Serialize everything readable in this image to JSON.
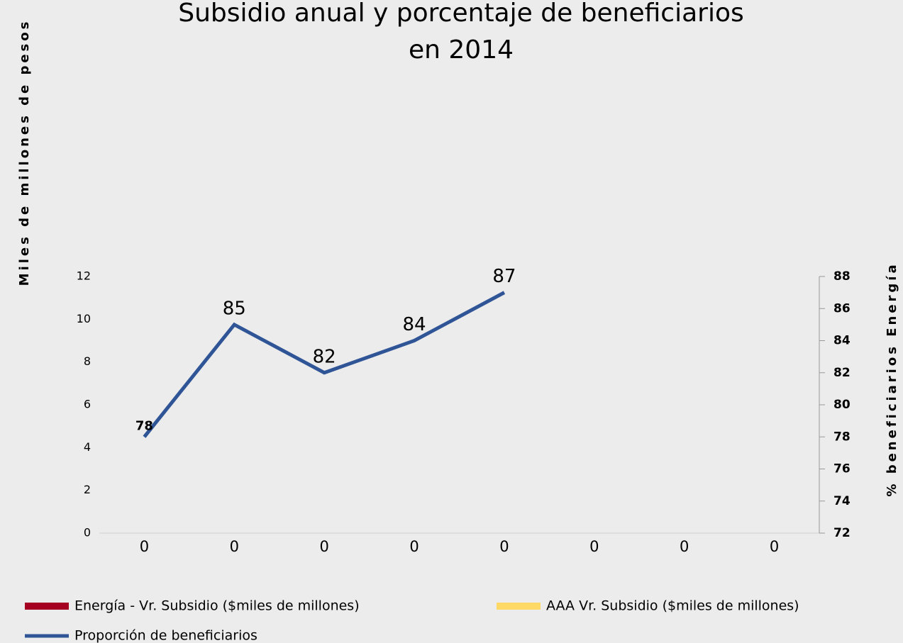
{
  "chart_data": {
    "type": "bar_line",
    "title": [
      "Subsidio anual y porcentaje de beneficiarios",
      "en 2014"
    ],
    "y_label": "Miles de millones de pesos",
    "y2_label": "% beneficiarios Energía",
    "categories": [
      "0",
      "0",
      "0",
      "0",
      "0",
      "0",
      "0",
      "0"
    ],
    "series": [
      {
        "name": "Energía - Vr. Subsidio ($miles de millones)",
        "type": "bar",
        "color": "#a50021",
        "values": [
          null,
          null,
          null,
          null,
          null,
          null,
          null,
          null
        ]
      },
      {
        "name": "AAA  Vr. Subsidio ($miles de millones)",
        "type": "bar",
        "color": "#ffd966",
        "values": [
          null,
          null,
          null,
          null,
          null,
          null,
          null,
          null
        ]
      },
      {
        "name": "Proporción de beneficiarios",
        "type": "line",
        "axis": "y2",
        "color": "#2f5597",
        "values": [
          78,
          85,
          82,
          84,
          87,
          null,
          null,
          null
        ]
      }
    ],
    "ylim": [
      0,
      12
    ],
    "yticks": [
      0,
      2,
      4,
      6,
      8,
      10,
      12
    ],
    "y2lim": [
      72,
      88
    ],
    "y2ticks": [
      72,
      74,
      76,
      78,
      80,
      82,
      84,
      86,
      88
    ]
  }
}
